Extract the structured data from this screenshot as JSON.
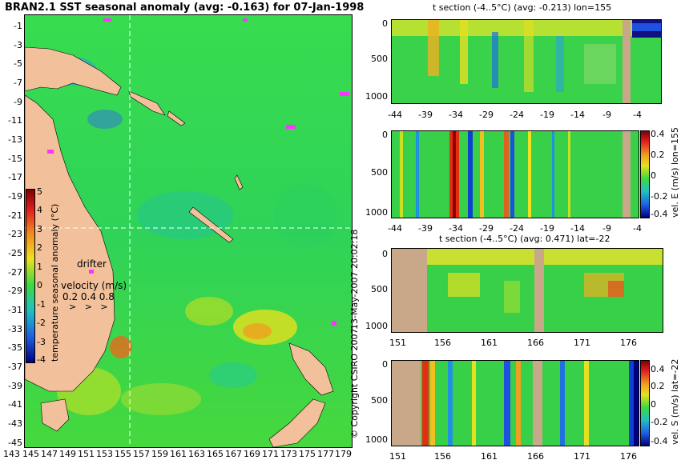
{
  "map": {
    "title": "BRAN2.1 SST seasonal anomaly (avg: -0.163) for 07-Jan-1998",
    "lat_ticks": [
      "-1",
      "-3",
      "-5",
      "-7",
      "-9",
      "-11",
      "-13",
      "-15",
      "-17",
      "-19",
      "-21",
      "-23",
      "-25",
      "-27",
      "-29",
      "-31",
      "-33",
      "-35",
      "-37",
      "-39",
      "-41",
      "-43",
      "-45"
    ],
    "lon_ticks": [
      "143",
      "145",
      "147",
      "149",
      "151",
      "153",
      "155",
      "157",
      "159",
      "161",
      "163",
      "165",
      "167",
      "169",
      "171",
      "173",
      "175",
      "177",
      "179"
    ],
    "colorbar": {
      "label": "temperature seasonal anomaly (°C)",
      "ticks": [
        "5",
        "4",
        "3",
        "2",
        "1",
        "0",
        "-1",
        "-2",
        "-3",
        "-4"
      ],
      "range": [
        -4,
        5
      ]
    },
    "drifter_label": "drifter",
    "velocity_label": "velocity (m/s)",
    "velocity_ticks": "0.2 0.4 0.8",
    "crosshair": {
      "lat": -22,
      "lon": 155
    },
    "colors": {
      "ocean": "#33d94d",
      "land": "#f2c09a",
      "drifter": "#ff33ff"
    }
  },
  "side": {
    "date_stamp": "13-May-2007 20:02:18",
    "copyright": "© Copyright CSIRO 2007"
  },
  "panels": [
    {
      "id": "t-lon",
      "title": "t section (-4..5°C) (avg: -0.213) lon=155",
      "y_ticks": [
        "0",
        "500",
        "1000"
      ],
      "x_ticks": [
        "-44",
        "-39",
        "-34",
        "-29",
        "-24",
        "-19",
        "-14",
        "-9",
        "-4"
      ],
      "colorbar_label": ""
    },
    {
      "id": "v-lon",
      "title": "",
      "y_ticks": [
        "0",
        "500",
        "1000"
      ],
      "x_ticks": [
        "-44",
        "-39",
        "-34",
        "-29",
        "-24",
        "-19",
        "-14",
        "-9",
        "-4"
      ],
      "colorbar_label": "vel. E (m/s) lon=155",
      "colorbar_ticks": [
        "0.4",
        "0.2",
        "0",
        "-0.2",
        "-0.4"
      ]
    },
    {
      "id": "t-lat",
      "title": "t section (-4..5°C) (avg: 0.471) lat=-22",
      "y_ticks": [
        "0",
        "500",
        "1000"
      ],
      "x_ticks": [
        "151",
        "156",
        "161",
        "166",
        "171",
        "176"
      ],
      "colorbar_label": ""
    },
    {
      "id": "v-lat",
      "title": "",
      "y_ticks": [
        "0",
        "500",
        "1000"
      ],
      "x_ticks": [
        "151",
        "156",
        "161",
        "166",
        "171",
        "176"
      ],
      "colorbar_label": "vel. S (m/s) lat=-22",
      "colorbar_ticks": [
        "0.4",
        "0.2",
        "0",
        "-0.2",
        "-0.4"
      ]
    }
  ]
}
